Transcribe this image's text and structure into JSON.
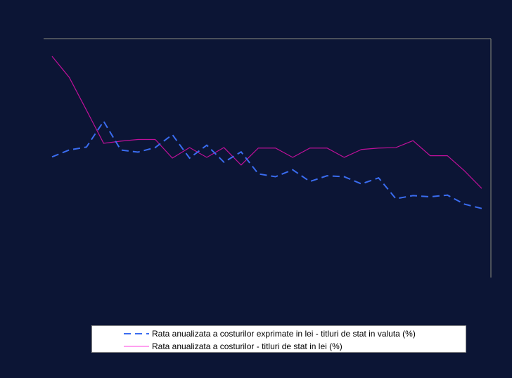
{
  "chart_data": {
    "type": "line",
    "title": "",
    "xlabel": "",
    "ylabel": "",
    "x": [
      1,
      2,
      3,
      4,
      5,
      6,
      7,
      8,
      9,
      10,
      11,
      12,
      13,
      14,
      15,
      16,
      17,
      18,
      19,
      20,
      21,
      22,
      23,
      24,
      25,
      26
    ],
    "ylim": [
      0,
      100
    ],
    "grid": false,
    "legend_placement": "bottom",
    "series": [
      {
        "name": "Rata anualizata a costurilor exprimate in lei - titluri de stat in valuta (%)",
        "color": "#3a6cf0",
        "style": "dashed",
        "values": [
          50.5,
          53.4,
          54.6,
          65.4,
          53.4,
          52.5,
          54.4,
          59.8,
          50.0,
          55.4,
          48.3,
          52.6,
          43.4,
          42.2,
          45.1,
          40.2,
          42.6,
          42.2,
          39.2,
          41.7,
          33.0,
          34.3,
          33.8,
          34.5,
          30.7,
          28.9
        ]
      },
      {
        "name": "Rata anualizata a costurilor - titluri de stat in lei (%)",
        "color": "#c0109a",
        "style": "solid",
        "values": [
          92.6,
          83.8,
          70.1,
          56.2,
          57.1,
          57.8,
          57.8,
          50.0,
          54.4,
          50.3,
          54.4,
          47.1,
          54.2,
          54.2,
          50.3,
          54.2,
          54.2,
          50.3,
          53.6,
          54.2,
          54.4,
          57.3,
          51.0,
          51.0,
          44.6,
          37.3
        ]
      }
    ]
  }
}
